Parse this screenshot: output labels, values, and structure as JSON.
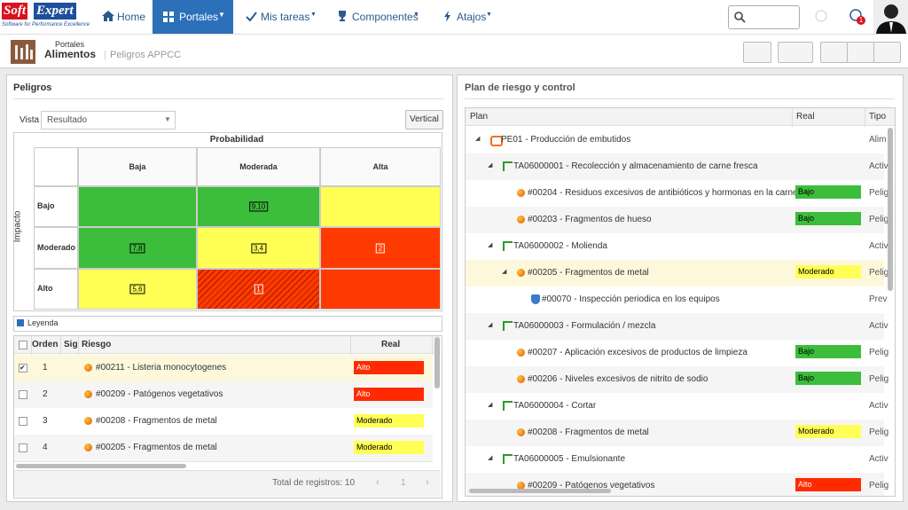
{
  "nav": {
    "brand_1": "Soft",
    "brand_2": "Expert",
    "tagline": "Software for Performance Excellence",
    "items": [
      "Home",
      "Portales",
      "Mis tareas",
      "Componentes",
      "Atajos"
    ],
    "notifications": 1
  },
  "header": {
    "section": "Portales",
    "title": "Alimentos",
    "subtitle": "Peligros APPCC"
  },
  "risks": {
    "title": "Peligros",
    "vista_label": "Vista",
    "vista_value": "Resultado",
    "button": "Vertical",
    "matrix": {
      "x_title": "Probabilidad",
      "y_title": "Impacto",
      "columns": [
        "Baja",
        "Moderada",
        "Alta"
      ],
      "rows": [
        "Bajo",
        "Moderado",
        "Alto"
      ],
      "cells": [
        [
          null,
          "9,10",
          null
        ],
        [
          "7,8",
          "3,4",
          "2"
        ],
        [
          "5,6",
          "1",
          null
        ]
      ],
      "cell_colors": [
        [
          "#3cbd3c",
          "#3cbd3c",
          "#ffff55"
        ],
        [
          "#3cbd3c",
          "#ffff55",
          "#ff3a00"
        ],
        [
          "#ffff55",
          "#ff3a00",
          "#ff3a00"
        ]
      ]
    },
    "legend": "Leyenda",
    "table": {
      "columns": [
        "Orden",
        "Sig",
        "Riesgo",
        "Real"
      ],
      "rows": [
        {
          "orden": 1,
          "riesgo": "#00211 - Listeria monocytogenes",
          "real": "Alto",
          "real_color": "#ff2a00"
        },
        {
          "orden": 2,
          "riesgo": "#00209 - Patógenos vegetativos",
          "real": "Alto",
          "real_color": "#ff2a00"
        },
        {
          "orden": 3,
          "riesgo": "#00208 - Fragmentos de metal",
          "real": "Moderado",
          "real_color": "#ffff55"
        },
        {
          "orden": 4,
          "riesgo": "#00205 - Fragmentos de metal",
          "real": "Moderado",
          "real_color": "#ffff55"
        }
      ]
    },
    "footer": "Total de registros: 10",
    "page": 1
  },
  "plan": {
    "title": "Plan de riesgo y control",
    "columns": [
      "Plan",
      "Real",
      "Tipo"
    ],
    "rows": [
      {
        "plan": "PE01 - Producción de embutidos",
        "tipo": "Alim"
      },
      {
        "plan": "TA06000001 - Recolección y almacenamiento de carne fresca",
        "tipo": "Activ"
      },
      {
        "plan": "#00204 - Residuos excesivos de antibióticos y hormonas en la carne",
        "real": "Bajo",
        "real_color": "#3cbd3c",
        "tipo": "Pelig"
      },
      {
        "plan": "#00203 - Fragmentos de hueso",
        "real": "Bajo",
        "real_color": "#3cbd3c",
        "tipo": "Pelig"
      },
      {
        "plan": "TA06000002 - Molienda",
        "tipo": "Activ"
      },
      {
        "plan": "#00205 - Fragmentos de metal",
        "real": "Moderado",
        "real_color": "#ffff55",
        "tipo": "Pelig"
      },
      {
        "plan": "#00070 - Inspección periodica en los equipos",
        "tipo": "Prev"
      },
      {
        "plan": "TA06000003 - Formulación / mezcla",
        "tipo": "Activ"
      },
      {
        "plan": "#00207 - Aplicación excesivos de productos de limpieza",
        "real": "Bajo",
        "real_color": "#3cbd3c",
        "tipo": "Pelig"
      },
      {
        "plan": "#00206 - Niveles excesivos de nitrito de sodio",
        "real": "Bajo",
        "real_color": "#3cbd3c",
        "tipo": "Pelig"
      },
      {
        "plan": "TA06000004 - Cortar",
        "tipo": "Activ"
      },
      {
        "plan": "#00208 - Fragmentos de metal",
        "real": "Moderado",
        "real_color": "#ffff55",
        "tipo": "Pelig"
      },
      {
        "plan": "TA06000005 - Emulsionante",
        "tipo": "Activ"
      },
      {
        "plan": "#00209 - Patógenos vegetativos",
        "real": "Alto",
        "real_color": "#ff2a00",
        "tipo": "Pelig"
      }
    ]
  }
}
